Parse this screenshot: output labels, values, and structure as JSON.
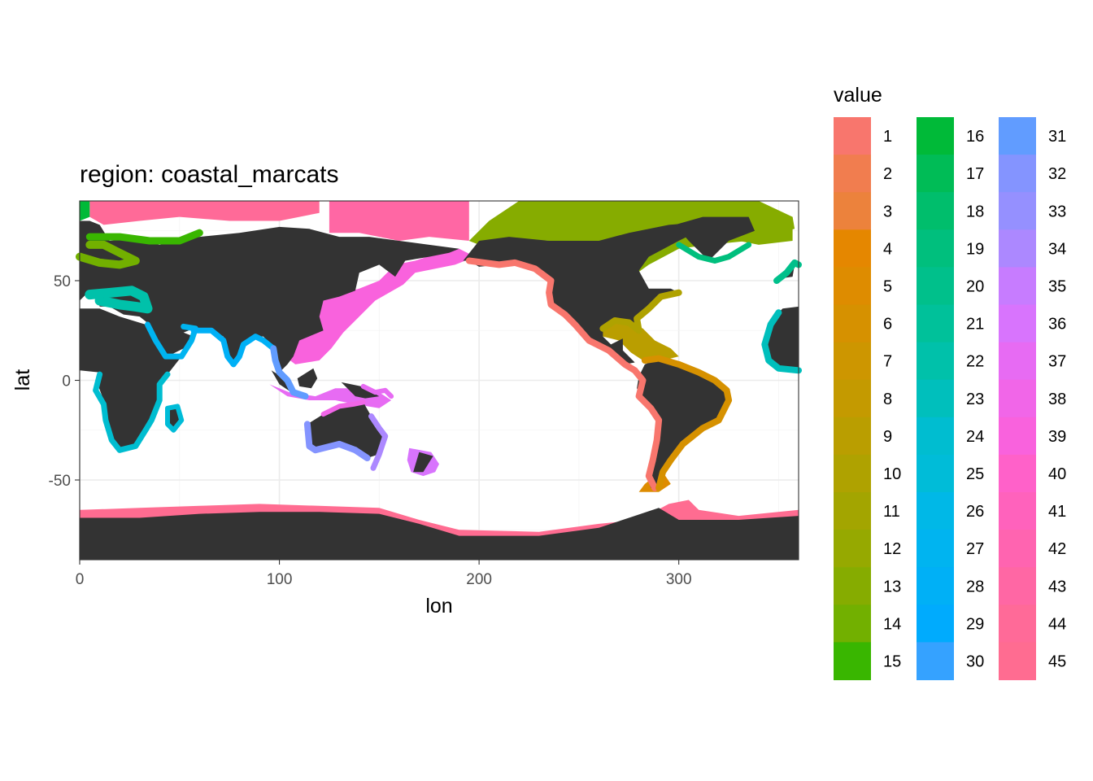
{
  "chart_data": {
    "type": "heatmap",
    "title": "region: coastal_marcats",
    "xlabel": "lon",
    "ylabel": "lat",
    "xlim": [
      0,
      360
    ],
    "ylim": [
      -90,
      90
    ],
    "x_ticks": [
      0,
      100,
      200,
      300
    ],
    "y_ticks": [
      -50,
      0,
      50
    ],
    "grid": true,
    "legend_title": "value",
    "legend_placement": "right",
    "land_color": "#333333",
    "legend_categories": [
      {
        "value": "1",
        "color": "#F8766D"
      },
      {
        "value": "2",
        "color": "#F17D4F"
      },
      {
        "value": "3",
        "color": "#EC823C"
      },
      {
        "value": "4",
        "color": "#E58700"
      },
      {
        "value": "5",
        "color": "#DE8C00"
      },
      {
        "value": "6",
        "color": "#D69100"
      },
      {
        "value": "7",
        "color": "#CD9600"
      },
      {
        "value": "8",
        "color": "#C49A00"
      },
      {
        "value": "9",
        "color": "#BA9E00"
      },
      {
        "value": "10",
        "color": "#AFA200"
      },
      {
        "value": "11",
        "color": "#A3A500"
      },
      {
        "value": "12",
        "color": "#96A900"
      },
      {
        "value": "13",
        "color": "#86AC00"
      },
      {
        "value": "14",
        "color": "#72B000"
      },
      {
        "value": "15",
        "color": "#39B600"
      },
      {
        "value": "16",
        "color": "#00BA38"
      },
      {
        "value": "17",
        "color": "#00BC56"
      },
      {
        "value": "18",
        "color": "#00BE6C"
      },
      {
        "value": "19",
        "color": "#00BF7D"
      },
      {
        "value": "20",
        "color": "#00C08B"
      },
      {
        "value": "21",
        "color": "#00C19A"
      },
      {
        "value": "22",
        "color": "#00C1AA"
      },
      {
        "value": "23",
        "color": "#00BFBC"
      },
      {
        "value": "24",
        "color": "#00BDD0"
      },
      {
        "value": "25",
        "color": "#00BCD8"
      },
      {
        "value": "26",
        "color": "#00B8E7"
      },
      {
        "value": "27",
        "color": "#00B4F0"
      },
      {
        "value": "28",
        "color": "#00B0F6"
      },
      {
        "value": "29",
        "color": "#00ABFD"
      },
      {
        "value": "30",
        "color": "#35A2FF"
      },
      {
        "value": "31",
        "color": "#619CFF"
      },
      {
        "value": "32",
        "color": "#8494FF"
      },
      {
        "value": "33",
        "color": "#9590FF"
      },
      {
        "value": "34",
        "color": "#AC88FF"
      },
      {
        "value": "35",
        "color": "#C77CFF"
      },
      {
        "value": "36",
        "color": "#D874FD"
      },
      {
        "value": "37",
        "color": "#E76BF3"
      },
      {
        "value": "38",
        "color": "#F166E8"
      },
      {
        "value": "39",
        "color": "#F962DD"
      },
      {
        "value": "40",
        "color": "#FF61C9"
      },
      {
        "value": "41",
        "color": "#FF62BC"
      },
      {
        "value": "42",
        "color": "#FF64B0"
      },
      {
        "value": "43",
        "color": "#FF67A4"
      },
      {
        "value": "44",
        "color": "#FF6A98"
      },
      {
        "value": "45",
        "color": "#FF6C91"
      }
    ]
  }
}
